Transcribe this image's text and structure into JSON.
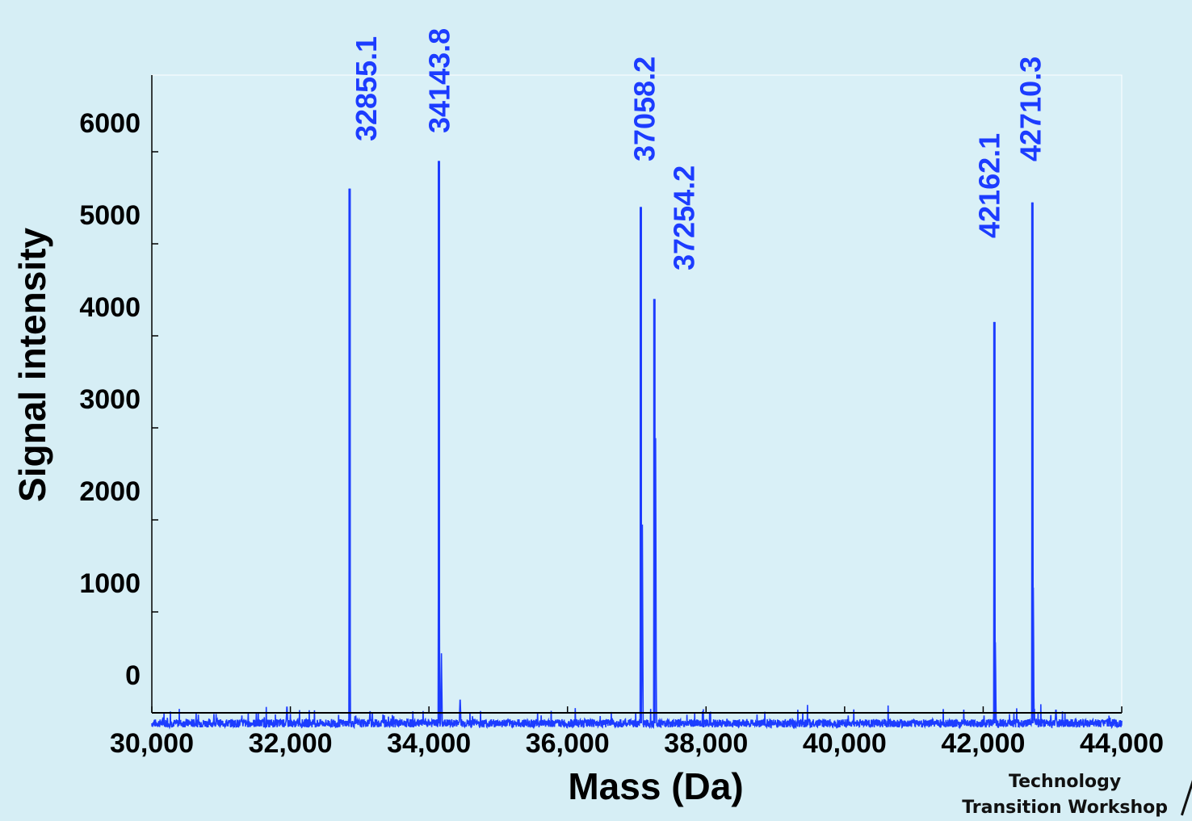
{
  "chart_data": {
    "type": "line",
    "xlabel": "Mass (Da)",
    "ylabel": "Signal intensity",
    "xlim": [
      30000,
      44000
    ],
    "ylim": [
      -300,
      6850
    ],
    "x_ticks": [
      "30,000",
      "32,000",
      "34,000",
      "36,000",
      "38,000",
      "40,000",
      "42,000",
      "44,000"
    ],
    "y_ticks": [
      "0",
      "1000",
      "2000",
      "3000",
      "4000",
      "5000",
      "6000"
    ],
    "line_color": "#1c3cff",
    "label_color": "#1c3cff",
    "baseline": -210,
    "peaks": [
      {
        "label": "32855.1",
        "x": 32855.1,
        "y": 5600
      },
      {
        "label": "34143.8",
        "x": 34143.8,
        "y": 5900
      },
      {
        "label": "37058.2",
        "x": 37058.2,
        "y": 5400
      },
      {
        "label": "37254.2",
        "x": 37254.2,
        "y": 4400
      },
      {
        "label": "42162.1",
        "x": 42162.1,
        "y": 4150
      },
      {
        "label": "42710.3",
        "x": 42710.3,
        "y": 5450
      }
    ],
    "minor_features": [
      {
        "x": 31950,
        "y": 0
      },
      {
        "x": 33150,
        "y": -60
      },
      {
        "x": 34450,
        "y": 90
      },
      {
        "x": 34180,
        "y": 550
      },
      {
        "x": 37080,
        "y": 1950
      },
      {
        "x": 37270,
        "y": 3500
      },
      {
        "x": 42175,
        "y": 750
      },
      {
        "x": 42722,
        "y": 1550
      },
      {
        "x": 43050,
        "y": -40
      }
    ]
  },
  "footer": {
    "line1": "Technology",
    "line2": "Transition Workshop"
  }
}
